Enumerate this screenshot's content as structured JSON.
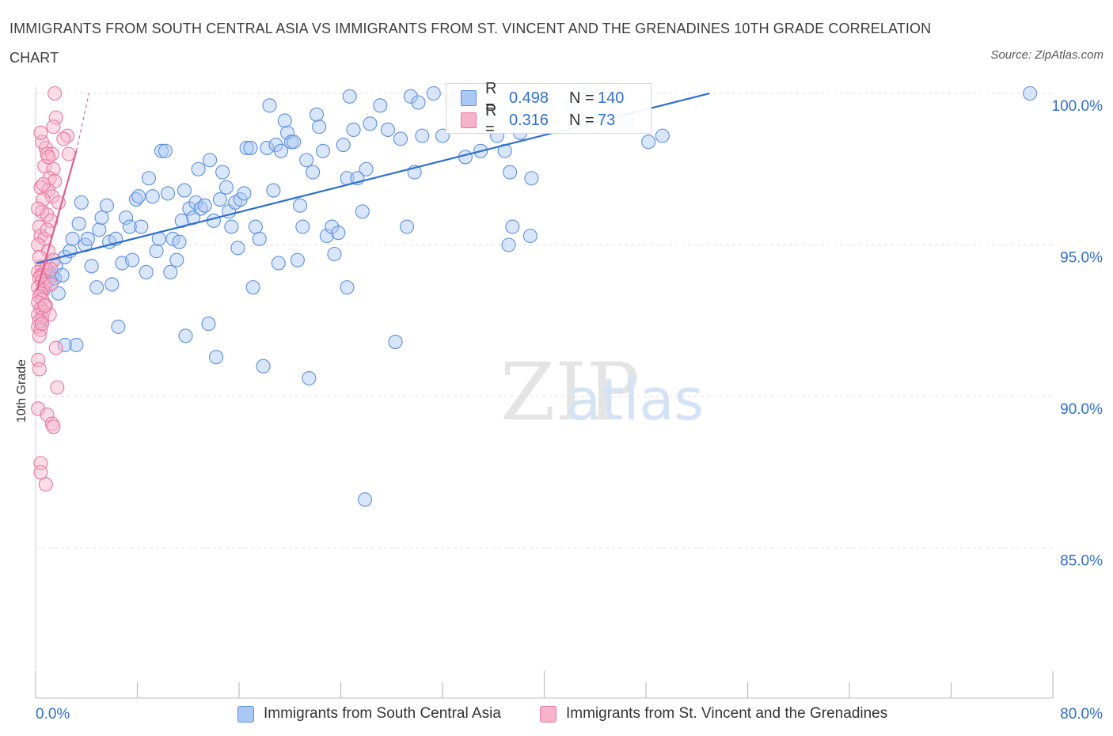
{
  "header": {
    "title": "IMMIGRANTS FROM SOUTH CENTRAL ASIA VS IMMIGRANTS FROM ST. VINCENT AND THE GRENADINES 10TH GRADE CORRELATION CHART",
    "source": "Source: ZipAtlas.com"
  },
  "watermark": {
    "zip": "ZIP",
    "atlas": "atlas"
  },
  "legend_top": {
    "rows": [
      {
        "r_label": "R =",
        "r_value": "0.498",
        "n_label": "N =",
        "n_value": "140"
      },
      {
        "r_label": "R =",
        "r_value": "0.316",
        "n_label": "N =",
        "n_value": "73"
      }
    ]
  },
  "legend_bottom": {
    "series1": "Immigrants from South Central Asia",
    "series2": "Immigrants from St. Vincent and the Grenadines"
  },
  "colors": {
    "blue_fill": "#aac8f4",
    "blue_stroke": "#5b8fe0",
    "blue_line": "#2d6fcf",
    "pink_fill": "#f6b3cb",
    "pink_stroke": "#e8799f",
    "pink_line": "#e0608e",
    "axis_label": "#2f6fd0",
    "grid": "#dedede"
  },
  "chart_data": {
    "type": "scatter",
    "title": "IMMIGRANTS FROM SOUTH CENTRAL ASIA VS IMMIGRANTS FROM ST. VINCENT AND THE GRENADINES 10TH GRADE CORRELATION CHART",
    "xlabel": "",
    "ylabel": "10th Grade",
    "xlim": [
      0,
      80
    ],
    "ylim": [
      80.5,
      100.6
    ],
    "x_tick_labels": [
      "0.0%",
      "80.0%"
    ],
    "y_ticks": [
      100,
      95,
      90,
      85
    ],
    "y_tick_labels": [
      "100.0%",
      "95.0%",
      "90.0%",
      "85.0%"
    ],
    "grid": "horizontal dashed",
    "series": [
      {
        "name": "Immigrants from South Central Asia",
        "r": 0.498,
        "n": 140,
        "trend": {
          "x": [
            0.1,
            53
          ],
          "y": [
            94.4,
            100
          ]
        },
        "points": [
          [
            0.5,
            92.5
          ],
          [
            0.7,
            93.6
          ],
          [
            0.9,
            94.0
          ],
          [
            1.0,
            93.8
          ],
          [
            1.1,
            94.1
          ],
          [
            1.3,
            94.0
          ],
          [
            1.5,
            93.9
          ],
          [
            1.8,
            93.4
          ],
          [
            1.6,
            94.3
          ],
          [
            2.1,
            94.0
          ],
          [
            2.3,
            94.6
          ],
          [
            2.7,
            94.8
          ],
          [
            2.9,
            95.2
          ],
          [
            2.3,
            91.7
          ],
          [
            3.2,
            91.7
          ],
          [
            3.4,
            95.7
          ],
          [
            3.6,
            96.4
          ],
          [
            3.9,
            95.0
          ],
          [
            4.1,
            95.2
          ],
          [
            4.4,
            94.3
          ],
          [
            4.8,
            93.6
          ],
          [
            5.0,
            95.5
          ],
          [
            5.2,
            95.9
          ],
          [
            5.6,
            96.3
          ],
          [
            5.8,
            95.1
          ],
          [
            6.0,
            93.7
          ],
          [
            6.3,
            95.2
          ],
          [
            6.5,
            92.3
          ],
          [
            6.8,
            94.4
          ],
          [
            7.1,
            95.9
          ],
          [
            7.4,
            95.6
          ],
          [
            7.6,
            94.5
          ],
          [
            7.9,
            96.5
          ],
          [
            8.1,
            96.6
          ],
          [
            8.3,
            95.6
          ],
          [
            8.7,
            94.1
          ],
          [
            8.9,
            97.2
          ],
          [
            9.2,
            96.6
          ],
          [
            9.5,
            94.8
          ],
          [
            9.7,
            95.2
          ],
          [
            9.9,
            98.1
          ],
          [
            10.2,
            98.1
          ],
          [
            10.4,
            96.7
          ],
          [
            10.6,
            94.1
          ],
          [
            10.8,
            95.2
          ],
          [
            11.1,
            94.5
          ],
          [
            11.3,
            95.1
          ],
          [
            11.5,
            95.8
          ],
          [
            11.7,
            96.8
          ],
          [
            11.8,
            92.0
          ],
          [
            12.1,
            96.2
          ],
          [
            12.4,
            95.9
          ],
          [
            12.6,
            96.4
          ],
          [
            12.8,
            97.5
          ],
          [
            13.0,
            96.2
          ],
          [
            13.3,
            96.3
          ],
          [
            13.6,
            92.4
          ],
          [
            13.7,
            97.8
          ],
          [
            14.0,
            95.8
          ],
          [
            14.2,
            91.3
          ],
          [
            14.5,
            96.5
          ],
          [
            14.7,
            97.4
          ],
          [
            15.0,
            96.9
          ],
          [
            15.2,
            96.1
          ],
          [
            15.4,
            95.6
          ],
          [
            15.7,
            96.4
          ],
          [
            15.9,
            94.9
          ],
          [
            16.1,
            96.5
          ],
          [
            16.4,
            96.7
          ],
          [
            16.6,
            98.2
          ],
          [
            16.9,
            98.2
          ],
          [
            17.1,
            93.6
          ],
          [
            17.3,
            95.6
          ],
          [
            17.6,
            95.2
          ],
          [
            17.9,
            91.0
          ],
          [
            18.2,
            98.2
          ],
          [
            18.4,
            99.6
          ],
          [
            18.7,
            96.8
          ],
          [
            18.9,
            98.3
          ],
          [
            19.1,
            94.4
          ],
          [
            19.3,
            98.1
          ],
          [
            19.6,
            99.1
          ],
          [
            19.8,
            98.7
          ],
          [
            20.1,
            98.4
          ],
          [
            20.3,
            98.4
          ],
          [
            20.6,
            94.5
          ],
          [
            20.8,
            96.3
          ],
          [
            21.0,
            95.6
          ],
          [
            21.3,
            97.8
          ],
          [
            21.5,
            90.6
          ],
          [
            21.8,
            97.4
          ],
          [
            22.1,
            99.3
          ],
          [
            22.3,
            98.9
          ],
          [
            22.6,
            98.1
          ],
          [
            22.9,
            95.3
          ],
          [
            23.3,
            95.6
          ],
          [
            23.5,
            94.7
          ],
          [
            23.8,
            95.4
          ],
          [
            24.2,
            98.3
          ],
          [
            24.5,
            97.2
          ],
          [
            24.7,
            99.9
          ],
          [
            24.5,
            93.6
          ],
          [
            25.0,
            98.8
          ],
          [
            25.3,
            97.2
          ],
          [
            25.7,
            96.1
          ],
          [
            26.0,
            97.5
          ],
          [
            26.3,
            99.0
          ],
          [
            25.9,
            86.6
          ],
          [
            27.1,
            99.6
          ],
          [
            27.7,
            98.8
          ],
          [
            28.3,
            91.8
          ],
          [
            28.7,
            98.5
          ],
          [
            29.2,
            95.6
          ],
          [
            29.5,
            99.9
          ],
          [
            29.8,
            97.4
          ],
          [
            30.1,
            99.7
          ],
          [
            30.4,
            98.6
          ],
          [
            31.3,
            100.0
          ],
          [
            32.0,
            98.6
          ],
          [
            32.8,
            99.8
          ],
          [
            33.2,
            100.0
          ],
          [
            33.8,
            97.9
          ],
          [
            34.3,
            99.3
          ],
          [
            35.0,
            98.1
          ],
          [
            35.5,
            99.1
          ],
          [
            36.3,
            98.6
          ],
          [
            36.9,
            98.1
          ],
          [
            37.3,
            97.4
          ],
          [
            37.5,
            95.6
          ],
          [
            37.2,
            95.0
          ],
          [
            38.1,
            98.7
          ],
          [
            38.9,
            95.3
          ],
          [
            39.0,
            97.2
          ],
          [
            40.3,
            99.6
          ],
          [
            42.0,
            99.6
          ],
          [
            43.3,
            100.0
          ],
          [
            46.5,
            99.1
          ],
          [
            48.2,
            98.4
          ],
          [
            49.3,
            98.6
          ],
          [
            78.2,
            100.0
          ]
        ]
      },
      {
        "name": "Immigrants from St. Vincent and the Grenadines",
        "r": 0.316,
        "n": 73,
        "trend": {
          "x": [
            0.1,
            3.2
          ],
          "y": [
            93.5,
            98.1
          ]
        },
        "trend_extension": {
          "x": [
            3.2,
            4.2
          ],
          "y": [
            98.1,
            100
          ]
        },
        "points": [
          [
            1.5,
            100.0
          ],
          [
            1.6,
            99.2
          ],
          [
            1.4,
            98.9
          ],
          [
            2.5,
            98.6
          ],
          [
            2.2,
            98.5
          ],
          [
            0.8,
            98.2
          ],
          [
            0.9,
            98.0
          ],
          [
            1.3,
            98.0
          ],
          [
            2.6,
            98.0
          ],
          [
            0.5,
            98.4
          ],
          [
            0.7,
            97.6
          ],
          [
            1.4,
            97.5
          ],
          [
            1.1,
            97.2
          ],
          [
            1.5,
            97.1
          ],
          [
            0.4,
            96.9
          ],
          [
            1.0,
            96.8
          ],
          [
            1.3,
            96.6
          ],
          [
            0.6,
            96.5
          ],
          [
            1.8,
            96.4
          ],
          [
            0.5,
            96.1
          ],
          [
            0.9,
            96.0
          ],
          [
            1.2,
            95.8
          ],
          [
            0.3,
            95.6
          ],
          [
            0.4,
            95.3
          ],
          [
            0.7,
            95.2
          ],
          [
            0.2,
            95.0
          ],
          [
            1.0,
            94.8
          ],
          [
            1.4,
            94.5
          ],
          [
            0.5,
            94.3
          ],
          [
            0.8,
            94.2
          ],
          [
            0.2,
            94.1
          ],
          [
            0.4,
            94.0
          ],
          [
            0.6,
            94.0
          ],
          [
            0.3,
            93.9
          ],
          [
            0.5,
            93.8
          ],
          [
            0.7,
            93.7
          ],
          [
            0.2,
            93.6
          ],
          [
            0.6,
            93.5
          ],
          [
            1.2,
            93.7
          ],
          [
            0.4,
            93.4
          ],
          [
            0.3,
            93.3
          ],
          [
            0.5,
            93.2
          ],
          [
            0.2,
            93.1
          ],
          [
            0.8,
            93.0
          ],
          [
            0.4,
            92.9
          ],
          [
            0.6,
            92.8
          ],
          [
            0.2,
            92.7
          ],
          [
            0.5,
            92.6
          ],
          [
            0.3,
            92.5
          ],
          [
            1.1,
            92.7
          ],
          [
            0.2,
            92.3
          ],
          [
            0.4,
            92.2
          ],
          [
            0.3,
            92.0
          ],
          [
            1.6,
            91.6
          ],
          [
            0.2,
            91.2
          ],
          [
            0.3,
            90.9
          ],
          [
            1.7,
            90.3
          ],
          [
            0.2,
            89.6
          ],
          [
            0.9,
            89.4
          ],
          [
            1.3,
            89.1
          ],
          [
            1.4,
            89.0
          ],
          [
            0.4,
            87.8
          ],
          [
            0.4,
            87.5
          ],
          [
            0.8,
            87.1
          ],
          [
            0.2,
            96.2
          ],
          [
            0.6,
            97.0
          ],
          [
            0.9,
            95.5
          ],
          [
            1.2,
            94.2
          ],
          [
            0.4,
            98.7
          ],
          [
            1.0,
            97.9
          ],
          [
            0.3,
            94.6
          ],
          [
            0.7,
            93.0
          ],
          [
            0.5,
            92.4
          ]
        ]
      }
    ]
  }
}
